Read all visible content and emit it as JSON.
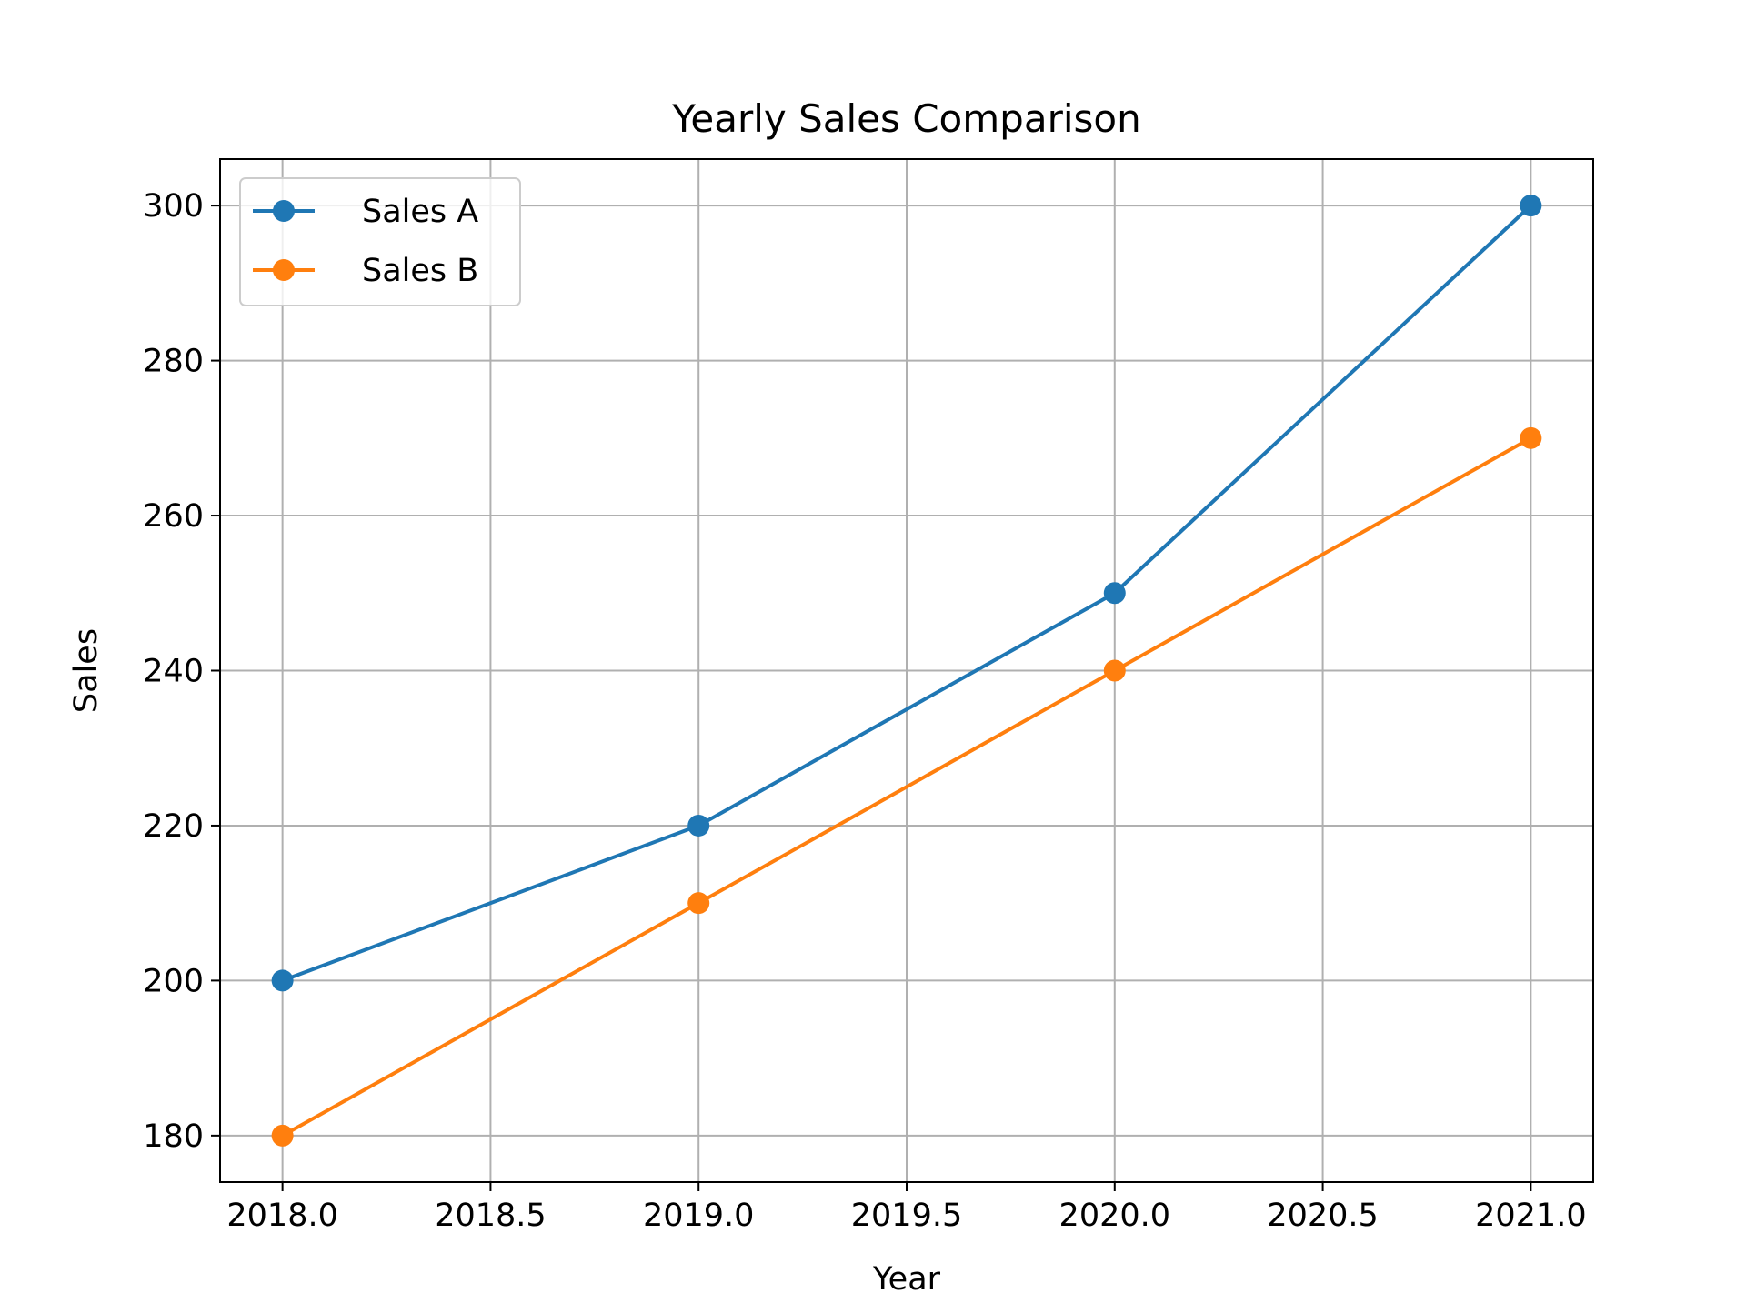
{
  "chart_data": {
    "type": "line",
    "title": "Yearly Sales Comparison",
    "xlabel": "Year",
    "ylabel": "Sales",
    "x": [
      2018,
      2019,
      2020,
      2021
    ],
    "series": [
      {
        "name": "Sales A",
        "values": [
          200,
          220,
          250,
          300
        ],
        "color": "#1f77b4"
      },
      {
        "name": "Sales B",
        "values": [
          180,
          210,
          240,
          270
        ],
        "color": "#ff7f0e"
      }
    ],
    "xlim": [
      2017.85,
      2021.15
    ],
    "ylim": [
      174,
      306
    ],
    "xticks": [
      2018.0,
      2018.5,
      2019.0,
      2019.5,
      2020.0,
      2020.5,
      2021.0
    ],
    "xtick_labels": [
      "2018.0",
      "2018.5",
      "2019.0",
      "2019.5",
      "2020.0",
      "2020.5",
      "2021.0"
    ],
    "yticks": [
      180,
      200,
      220,
      240,
      260,
      280,
      300
    ],
    "ytick_labels": [
      "180",
      "200",
      "220",
      "240",
      "260",
      "280",
      "300"
    ],
    "grid": true,
    "legend_position": "upper-left",
    "marker": "circle"
  }
}
